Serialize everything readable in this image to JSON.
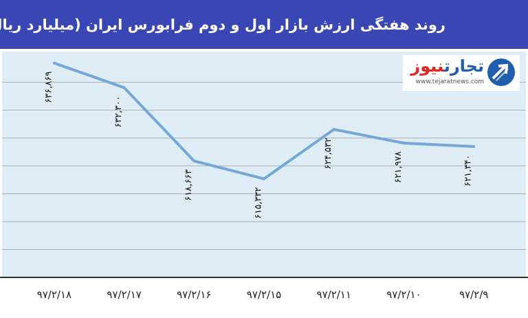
{
  "title": "روند هفتگی ارزش بازار اول و دوم فرابورس  ایران (میلیارد ریال)",
  "logo": {
    "word1": "تجارت",
    "word2": "نیوز",
    "url": "www.tejaratnews.com",
    "icon": "arrow-circle-icon"
  },
  "colors": {
    "header": "#3a46b4",
    "plot_background": "#deedf6",
    "line": "#75a8d8",
    "grid": "#b0b0b0"
  },
  "chart_data": {
    "type": "line",
    "categories": [
      "۹۷/۲/۱۸",
      "۹۷/۲/۱۷",
      "۹۷/۲/۱۶",
      "۹۷/۲/۱۵",
      "۹۷/۲/۱۱",
      "۹۷/۲/۱۰",
      "۹۷/۲/۹"
    ],
    "values": [
      636869,
      632300,
      618663,
      615332,
      624532,
      621978,
      621340
    ],
    "data_labels": [
      "۶۳۶,۸۶۹",
      "۶۳۲,۳۰۰",
      "۶۱۸,۶۶۳",
      "۶۱۵,۳۳۲",
      "۶۲۴,۵۳۲",
      "۶۲۱,۹۷۸",
      "۶۲۱,۳۴۰"
    ],
    "title": "روند هفتگی ارزش بازار اول و دوم فرابورس  ایران (میلیارد ریال)",
    "xlabel": "",
    "ylabel": "",
    "ylim": [
      597000,
      639000
    ],
    "grid": true,
    "legend": "none"
  }
}
